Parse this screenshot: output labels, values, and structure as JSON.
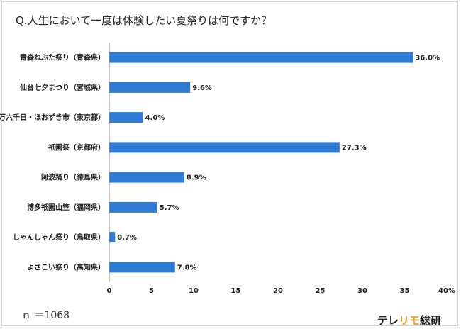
{
  "title": "Q.人生において一度は体験したい夏祭りは何ですか？",
  "note": "ｎ ＝1068",
  "brand": {
    "part1": "テレ",
    "part2": "リモ",
    "part3": "総研"
  },
  "colors": {
    "bar": "#2f7bd3",
    "accent": "#f0a21b"
  },
  "chart_data": {
    "type": "bar",
    "orientation": "horizontal",
    "categories": [
      "青森ねぶた祭り（青森県）",
      "仙台七夕まつり（宮城県）",
      "四万六千日・ほおずき市（東京都）",
      "祇園祭（京都府）",
      "阿波踊り（徳島県）",
      "博多祇園山笠（福岡県）",
      "しゃんしゃん祭り（鳥取県）",
      "よさこい祭り（高知県）"
    ],
    "values": [
      36.0,
      9.6,
      4.0,
      27.3,
      8.9,
      5.7,
      0.7,
      7.8
    ],
    "value_labels": [
      "36.0%",
      "9.6%",
      "4.0%",
      "27.3%",
      "8.9%",
      "5.7%",
      "0.7%",
      "7.8%"
    ],
    "xlim": [
      0,
      40
    ],
    "xticks": [
      "0",
      "5",
      "10",
      "15",
      "20",
      "25",
      "30",
      "35",
      "40%"
    ],
    "grid": false
  }
}
